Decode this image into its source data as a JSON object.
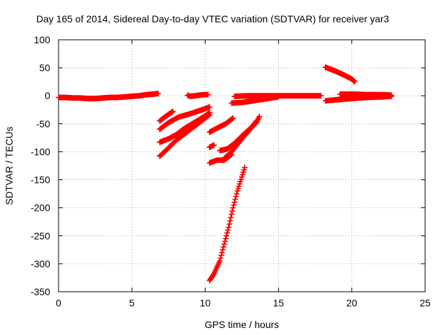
{
  "chart_data": {
    "type": "scatter",
    "title": "Day 165 of 2014, Sidereal Day-to-day VTEC variation (SDTVAR) for receiver yar3",
    "xlabel": "GPS time / hours",
    "ylabel": "SDTVAR / TECUs",
    "xlim": [
      0,
      25
    ],
    "ylim": [
      -350,
      100
    ],
    "x_ticks": [
      0,
      5,
      10,
      15,
      20,
      25
    ],
    "y_ticks": [
      -350,
      -300,
      -250,
      -200,
      -150,
      -100,
      -50,
      0,
      50,
      100
    ],
    "x_tick_labels": [
      "0",
      "5",
      "10",
      "15",
      "20",
      "25"
    ],
    "y_tick_labels": [
      "-350",
      "-300",
      "-250",
      "-200",
      "-150",
      "-100",
      "-50",
      "0",
      "50",
      "100"
    ],
    "grid": true,
    "grid_style": "dotted",
    "marker": "plus",
    "color": "#ff0000",
    "series": [
      {
        "x": [
          0.0,
          0.5,
          1.0,
          1.5,
          2.0,
          2.5,
          3.0,
          3.5,
          4.0,
          4.5,
          5.0,
          5.5,
          6.0,
          6.5,
          6.8
        ],
        "y": [
          -3,
          -3,
          -4,
          -4,
          -5,
          -5,
          -4,
          -3,
          -3,
          -2,
          -1,
          0,
          2,
          3,
          4
        ]
      },
      {
        "x": [
          8.8,
          9.0,
          9.3,
          9.6,
          9.9,
          10.2
        ],
        "y": [
          1,
          -1,
          0,
          1,
          2,
          2
        ]
      },
      {
        "x": [
          12.0,
          13.0,
          14.0,
          15.0,
          16.0,
          17.0,
          17.9
        ],
        "y": [
          -1,
          0,
          0,
          0,
          0,
          0,
          0
        ]
      },
      {
        "x": [
          11.8,
          12.5,
          13.0,
          13.5,
          14.0,
          14.5,
          15.0
        ],
        "y": [
          -13,
          -12,
          -10,
          -8,
          -6,
          -4,
          -2
        ]
      },
      {
        "x": [
          18.2,
          19.0,
          20.0,
          21.0,
          22.0,
          22.7
        ],
        "y": [
          -9,
          -7,
          -5,
          -3,
          -2,
          -1
        ]
      },
      {
        "x": [
          19.2,
          20.0,
          21.0,
          22.0,
          22.7
        ],
        "y": [
          3,
          3,
          2,
          2,
          1
        ]
      },
      {
        "x": [
          18.2,
          18.8,
          19.4,
          20.0,
          20.2
        ],
        "y": [
          51,
          45,
          38,
          30,
          25
        ]
      },
      {
        "x": [
          6.9,
          7.3,
          7.8
        ],
        "y": [
          -45,
          -37,
          -28
        ]
      },
      {
        "x": [
          6.9,
          7.5,
          8.2,
          9.0,
          9.8,
          10.3
        ],
        "y": [
          -60,
          -48,
          -38,
          -32,
          -25,
          -20
        ]
      },
      {
        "x": [
          6.9,
          7.5,
          8.0,
          8.5,
          9.0,
          9.5,
          10.0,
          10.3
        ],
        "y": [
          -83,
          -77,
          -70,
          -60,
          -52,
          -44,
          -36,
          -30
        ]
      },
      {
        "x": [
          6.9,
          7.5,
          8.0,
          8.5,
          9.0,
          9.5,
          10.0,
          10.3
        ],
        "y": [
          -108,
          -93,
          -80,
          -70,
          -60,
          -50,
          -40,
          -34
        ]
      },
      {
        "x": [
          10.3,
          10.8,
          11.4,
          11.9
        ],
        "y": [
          -65,
          -58,
          -50,
          -40
        ]
      },
      {
        "x": [
          10.3,
          10.6
        ],
        "y": [
          -92,
          -88
        ]
      },
      {
        "x": [
          10.3,
          10.8,
          11.3,
          11.8
        ],
        "y": [
          -120,
          -115,
          -115,
          -105
        ]
      },
      {
        "x": [
          11.0,
          11.5,
          12.0,
          12.5,
          13.0,
          13.5,
          13.7
        ],
        "y": [
          -98,
          -95,
          -85,
          -72,
          -60,
          -48,
          -37
        ]
      },
      {
        "x": [
          11.3,
          11.8,
          12.4,
          13.0,
          13.5
        ],
        "y": [
          -112,
          -100,
          -80,
          -62,
          -45
        ]
      },
      {
        "x": [
          10.3,
          10.6,
          11.0,
          11.3,
          11.6,
          11.9,
          12.2,
          12.5,
          12.7
        ],
        "y": [
          -330,
          -318,
          -295,
          -265,
          -235,
          -200,
          -170,
          -145,
          -128
        ]
      }
    ]
  }
}
